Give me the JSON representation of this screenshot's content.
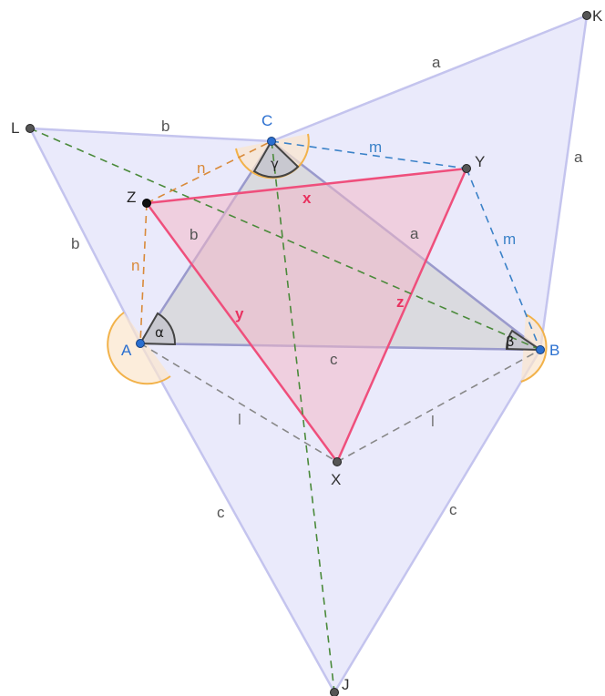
{
  "points": {
    "A": {
      "label": "A"
    },
    "B": {
      "label": "B"
    },
    "C": {
      "label": "C"
    },
    "X": {
      "label": "X"
    },
    "Y": {
      "label": "Y"
    },
    "Z": {
      "label": "Z"
    },
    "J": {
      "label": "J"
    },
    "K": {
      "label": "K"
    },
    "L": {
      "label": "L"
    }
  },
  "angles": {
    "alpha": "α",
    "beta": "β",
    "gamma": "γ"
  },
  "segment_labels": {
    "a_outer_1": "a",
    "a_outer_2": "a",
    "a_inner": "a",
    "b_outer_1": "b",
    "b_outer_2": "b",
    "b_inner": "b",
    "c_outer_1": "c",
    "c_outer_2": "c",
    "c_inner": "c",
    "x": "x",
    "y": "y",
    "z": "z",
    "m_1": "m",
    "m_2": "m",
    "n_1": "n",
    "n_2": "n",
    "l_1": "l",
    "l_2": "l"
  },
  "colors": {
    "outer_fill": "#e6e6fa",
    "outer_stroke": "#c4c4ee",
    "abc_fill": "#d9d9de",
    "abc_stroke": "#9a9acc",
    "napoleon_fill": "#f6cad6",
    "napoleon_stroke": "#ef4f7c",
    "green_dash": "#4a8a3a",
    "blue_dash": "#3b82c8",
    "orange_dash": "#d98a3a",
    "gray_dash": "#888888",
    "point_blue": "#2a6fd0",
    "point_dark": "#333333",
    "arc_orange": "#f2b24a",
    "arc_orange_fill": "#fbe6cc"
  }
}
